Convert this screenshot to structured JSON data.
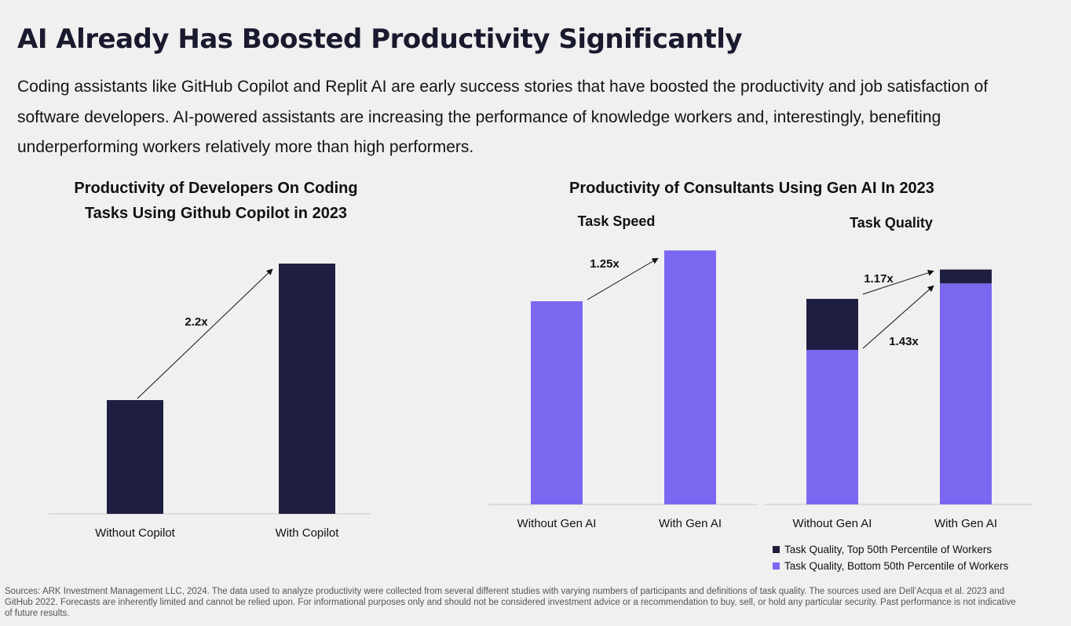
{
  "title": "AI Already Has Boosted Productivity Significantly",
  "subtitle": "Coding assistants like GitHub Copilot and Replit AI are early success stories that have boosted the productivity and job satisfaction of software developers. AI-powered assistants are increasing the performance of knowledge workers and, interestingly, benefiting underperforming workers relatively more than high performers.",
  "colors": {
    "dark": "#1e1f40",
    "purple": "#7b68f0",
    "axis": "#c8c8c8"
  },
  "charts": {
    "left_title_line1": "Productivity of Developers On Coding",
    "left_title_line2": "Tasks Using Github Copilot in 2023",
    "right_title": "Productivity of Consultants Using Gen AI In 2023",
    "speed_title": "Task Speed",
    "quality_title": "Task Quality"
  },
  "chart_data": [
    {
      "type": "bar",
      "title": "Productivity of Developers On Coding Tasks Using Github Copilot in 2023",
      "categories": [
        "Without Copilot",
        "With Copilot"
      ],
      "values": [
        1,
        2.2
      ],
      "annotations": [
        "2.2x"
      ]
    },
    {
      "type": "bar",
      "title": "Task Speed",
      "categories": [
        "Without Gen AI",
        "With Gen AI"
      ],
      "values": [
        1,
        1.25
      ],
      "annotations": [
        "1.25x"
      ]
    },
    {
      "type": "bar",
      "title": "Task Quality",
      "stacked": true,
      "categories": [
        "Without Gen AI",
        "With Gen AI"
      ],
      "series": [
        {
          "name": "Task Quality, Bottom 50th Percentile of Workers",
          "values": [
            1,
            1.43
          ]
        },
        {
          "name": "Task Quality, Top 50th Percentile of Workers",
          "values": [
            0.33,
            0.09
          ]
        }
      ],
      "annotations": [
        "1.17x",
        "1.43x"
      ]
    }
  ],
  "legend": {
    "top": "Task Quality, Top 50th Percentile of Workers",
    "bottom": "Task Quality, Bottom 50th Percentile of Workers"
  },
  "footer": "Sources: ARK Investment Management LLC, 2024. The data used to analyze productivity were collected from several different studies with varying numbers of participants and definitions of task quality. The sources used are Dell’Acqua et al. 2023 and GitHub 2022. Forecasts are inherently limited and cannot be relied upon. For informational purposes only and should not be considered investment advice or a recommendation to buy, sell, or hold any particular security. Past performance is not indicative of future results."
}
